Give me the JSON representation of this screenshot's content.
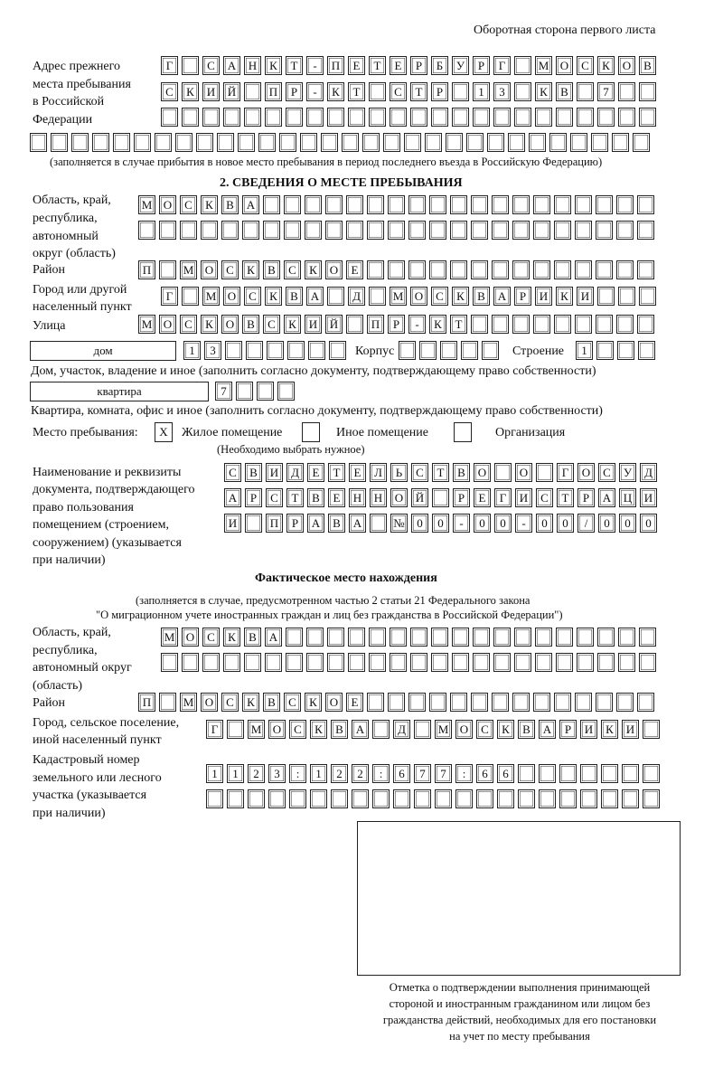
{
  "header": "Оборотная сторона первого листа",
  "prev_address": {
    "label": [
      "Адрес прежнего",
      "места пребывания",
      "в Российской",
      "Федерации"
    ],
    "rows": [
      "Г САНКТ-ПЕТЕРБУРГ МОСКОВ",
      "СКИЙ ПР-КТ СТР 13 КВ 7  ",
      "",
      ""
    ],
    "note": "(заполняется в случае прибытия в новое место пребывания в период последнего въезда в Российскую Федерацию)"
  },
  "section2": {
    "title": "2. СВЕДЕНИЯ О МЕСТЕ ПРЕБЫВАНИЯ",
    "region_label": [
      "Область, край,",
      "республика,",
      "автономный",
      "округ (область)"
    ],
    "region_rows": [
      "МОСКВА",
      ""
    ],
    "district_label": "Район",
    "district": "П МОСКВСКОЕ",
    "city_label": [
      "Город или другой",
      "населенный пункт"
    ],
    "city": "Г МОСКВА Д МОСКВАРИКИ",
    "street_label": "Улица",
    "street": "МОСКОВСКИЙ ПР-КТ",
    "house_type": "дом",
    "house": "13",
    "korpus_label": "Корпус",
    "korpus": "",
    "building_label": "Строение",
    "building": "1",
    "house_note": "Дом, участок, владение и иное (заполнить согласно документу, подтверждающему право собственности)",
    "apt_type": "квартира",
    "apt": "7",
    "apt_note": "Квартира, комната, офис и иное (заполнить согласно документу, подтверждающему право собственности)",
    "stay_label": "Место пребывания:",
    "options": [
      {
        "label": "Жилое помещение",
        "checked": true,
        "mark": "Х"
      },
      {
        "label": "Иное помещение",
        "checked": false
      },
      {
        "label": "Организация",
        "checked": false
      }
    ],
    "choose_note": "(Необходимо выбрать нужное)",
    "doc_label": [
      "Наименование и реквизиты",
      "документа, подтверждающего",
      "право пользования",
      "помещением (строением,",
      "сооружением) (указывается",
      "при наличии)"
    ],
    "doc_rows": [
      "СВИДЕТЕЛЬСТВО О ГОСУД",
      "АРСТВЕННОЙ РЕГИСТРАЦИ",
      "И ПРАВА №00-00-00/000"
    ]
  },
  "actual": {
    "title": "Фактическое место нахождения",
    "note": [
      "(заполняется в случае, предусмотренном частью 2 статьи 21 Федерального закона",
      "\"О миграционном учете иностранных граждан и лиц без гражданства в Российской Федерации\")"
    ],
    "region_label": [
      "Область, край,",
      "республика,",
      "автономный округ",
      "(область)"
    ],
    "region_rows": [
      "МОСКВА",
      ""
    ],
    "district_label": "Район",
    "district": "П МОСКВСКОЕ",
    "city_label": [
      "Город, сельское поселение,",
      "иной населенный пункт"
    ],
    "city": "Г МОСКВА Д МОСКВАРИКИ",
    "cadastre_label": [
      "Кадастровый номер",
      "земельного или лесного",
      "участка (указывается",
      "при наличии)"
    ],
    "cadastre_rows": [
      "1123:122:677:66",
      ""
    ]
  },
  "stamp_caption": [
    "Отметка о подтверждении выполнения принимающей",
    "стороной и иностранным гражданином или лицом без",
    "гражданства действий, необходимых для его постановки",
    "на учет по месту пребывания"
  ]
}
